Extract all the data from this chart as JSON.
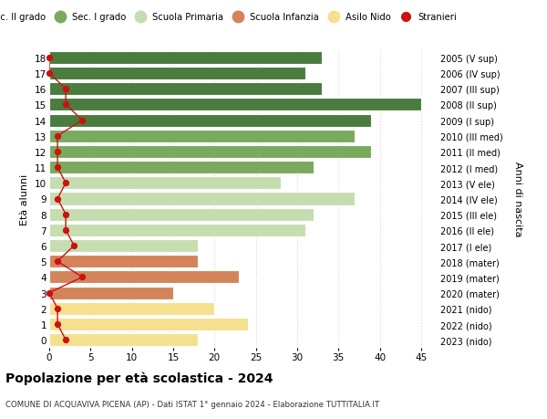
{
  "ages": [
    18,
    17,
    16,
    15,
    14,
    13,
    12,
    11,
    10,
    9,
    8,
    7,
    6,
    5,
    4,
    3,
    2,
    1,
    0
  ],
  "right_labels": [
    "2005 (V sup)",
    "2006 (IV sup)",
    "2007 (III sup)",
    "2008 (II sup)",
    "2009 (I sup)",
    "2010 (III med)",
    "2011 (II med)",
    "2012 (I med)",
    "2013 (V ele)",
    "2014 (IV ele)",
    "2015 (III ele)",
    "2016 (II ele)",
    "2017 (I ele)",
    "2018 (mater)",
    "2019 (mater)",
    "2020 (mater)",
    "2021 (nido)",
    "2022 (nido)",
    "2023 (nido)"
  ],
  "bar_values": [
    33,
    31,
    33,
    45,
    39,
    37,
    39,
    32,
    28,
    37,
    32,
    31,
    18,
    18,
    23,
    15,
    20,
    24,
    18
  ],
  "stranieri": [
    0,
    0,
    2,
    2,
    4,
    1,
    1,
    1,
    2,
    1,
    2,
    2,
    3,
    1,
    4,
    0,
    1,
    1,
    2
  ],
  "bar_colors": [
    "#4a7c3f",
    "#4a7c3f",
    "#4a7c3f",
    "#4a7c3f",
    "#4a7c3f",
    "#7aaa5e",
    "#7aaa5e",
    "#7aaa5e",
    "#c5ddb0",
    "#c5ddb0",
    "#c5ddb0",
    "#c5ddb0",
    "#c5ddb0",
    "#d4845a",
    "#d4845a",
    "#d4845a",
    "#f5e090",
    "#f5e090",
    "#f5e090"
  ],
  "legend_items": [
    {
      "label": "Sec. II grado",
      "color": "#4a7c3f"
    },
    {
      "label": "Sec. I grado",
      "color": "#7aaa5e"
    },
    {
      "label": "Scuola Primaria",
      "color": "#c5ddb0"
    },
    {
      "label": "Scuola Infanzia",
      "color": "#d4845a"
    },
    {
      "label": "Asilo Nido",
      "color": "#f5e090"
    },
    {
      "label": "Stranieri",
      "color": "#cc1111"
    }
  ],
  "xlabel_right": "Anni di nascita",
  "ylabel": "Età alunni",
  "title": "Popolazione per età scolastica - 2024",
  "subtitle": "COMUNE DI ACQUAVIVA PICENA (AP) - Dati ISTAT 1° gennaio 2024 - Elaborazione TUTTITALIA.IT",
  "xlim": [
    0,
    47
  ],
  "xticks": [
    0,
    5,
    10,
    15,
    20,
    25,
    30,
    35,
    40,
    45
  ],
  "stranieri_color": "#cc1111",
  "bg_color": "#ffffff",
  "grid_color": "#cccccc"
}
